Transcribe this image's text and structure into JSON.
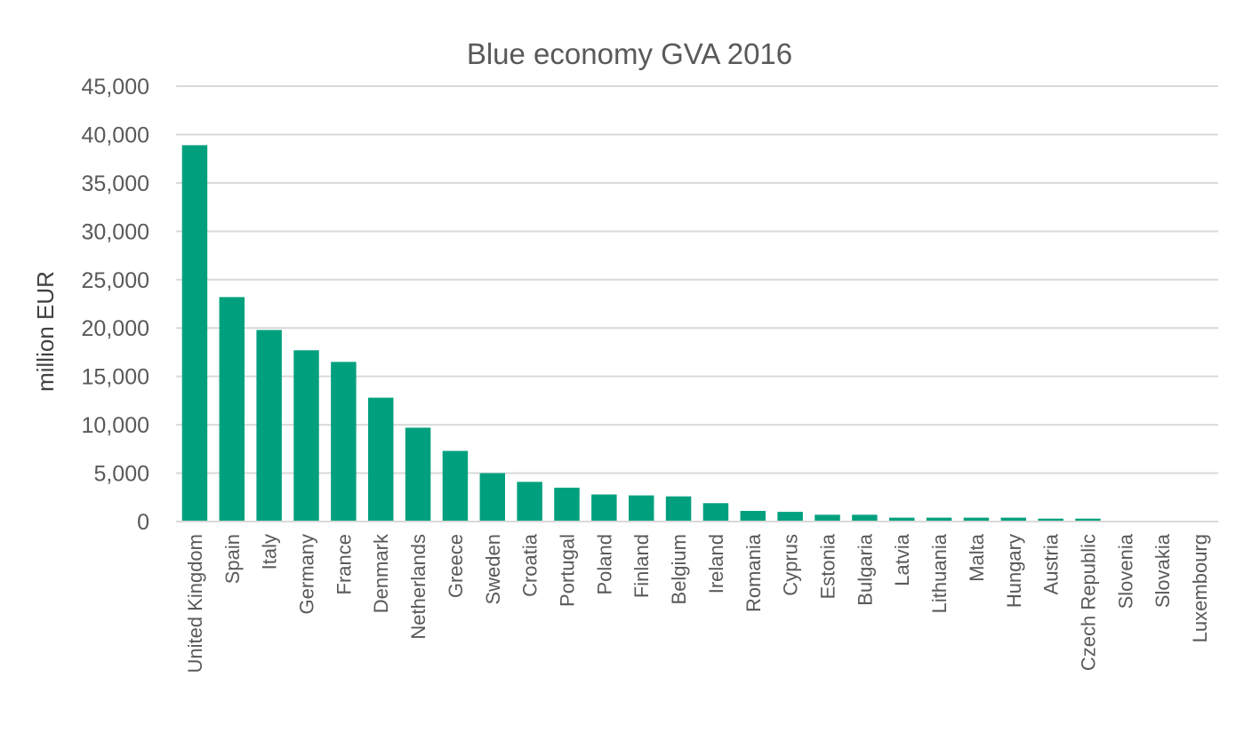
{
  "chart_data": {
    "type": "bar",
    "title": "Blue economy GVA 2016",
    "ylabel": "million EUR",
    "xlabel": "",
    "ylim": [
      0,
      45000
    ],
    "yticks": [
      0,
      5000,
      10000,
      15000,
      20000,
      25000,
      30000,
      35000,
      40000,
      45000
    ],
    "ytick_labels": [
      "0",
      "5,000",
      "10,000",
      "15,000",
      "20,000",
      "25,000",
      "30,000",
      "35,000",
      "40,000",
      "45,000"
    ],
    "grid": true,
    "legend": "none",
    "bar_color": "#00A07E",
    "categories": [
      "United Kingdom",
      "Spain",
      "Italy",
      "Germany",
      "France",
      "Denmark",
      "Netherlands",
      "Greece",
      "Sweden",
      "Croatia",
      "Portugal",
      "Poland",
      "Finland",
      "Belgium",
      "Ireland",
      "Romania",
      "Cyprus",
      "Estonia",
      "Bulgaria",
      "Latvia",
      "Lithuania",
      "Malta",
      "Hungary",
      "Austria",
      "Czech Republic",
      "Slovenia",
      "Slovakia",
      "Luxembourg"
    ],
    "values": [
      38900,
      23200,
      19800,
      17700,
      16500,
      12800,
      9700,
      7300,
      5000,
      4100,
      3500,
      2800,
      2700,
      2600,
      1900,
      1100,
      1000,
      700,
      700,
      400,
      400,
      400,
      400,
      300,
      300,
      50,
      20,
      0
    ]
  }
}
